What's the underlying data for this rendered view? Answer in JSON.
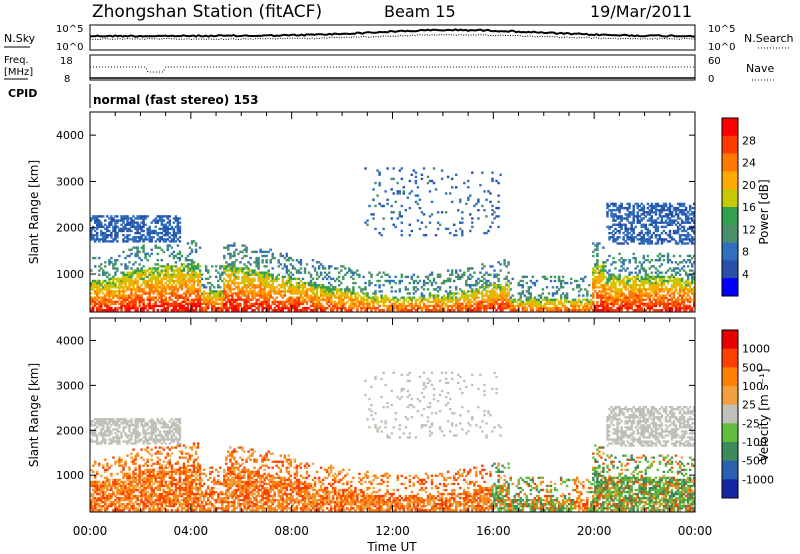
{
  "header": {
    "station": "Zhongshan Station (fitACF)",
    "beam": "Beam 15",
    "date": "19/Mar/2011"
  },
  "top_panels": {
    "nsky_label": "N.Sky",
    "nsearch_label": "N.Search",
    "nsky_ticks": [
      "10^5",
      "10^0"
    ],
    "nsearch_ticks": [
      "10^5",
      "10^0"
    ],
    "freq_label_1": "Freq.",
    "freq_label_2": "[MHz]",
    "freq_ticks": [
      "18",
      "8"
    ],
    "nave_label": "Nave",
    "nave_ticks": [
      "60",
      "0"
    ],
    "cpid_label": "CPID",
    "cpid_text": "normal (fast stereo) 153"
  },
  "chart_data": [
    {
      "type": "heatmap",
      "name": "power",
      "xlabel": "",
      "ylabel": "Slant Range [km]",
      "y_ticks": [
        1000,
        2000,
        3000,
        4000
      ],
      "ylim": [
        180,
        4500
      ],
      "colorbar": {
        "label": "Power [dB]",
        "ticks": [
          "28",
          "24",
          "20",
          "16",
          "12",
          "8",
          "4"
        ],
        "colors": [
          "#0000ff",
          "#2850a8",
          "#2f6fbd",
          "#4a8f6a",
          "#32a050",
          "#c8c800",
          "#ffaa00",
          "#ff7800",
          "#ff3c00",
          "#ff0000"
        ]
      },
      "x_ticks": [
        "00:00",
        "04:00",
        "08:00",
        "12:00",
        "16:00",
        "20:00",
        "00:00"
      ]
    },
    {
      "type": "heatmap",
      "name": "velocity",
      "xlabel": "Time UT",
      "ylabel": "Slant Range [km]",
      "y_ticks": [
        1000,
        2000,
        3000,
        4000
      ],
      "ylim": [
        180,
        4500
      ],
      "colorbar": {
        "label": "Velocity [m s⁻¹]",
        "ticks": [
          "1000",
          "500",
          "100",
          "25",
          "-25",
          "-100",
          "-500",
          "-1000"
        ],
        "colors": [
          "#1428a0",
          "#2c5fb0",
          "#3d8a5a",
          "#5fbf3a",
          "#c0c0b8",
          "#f0a040",
          "#ff8000",
          "#ff4000",
          "#e60000"
        ]
      },
      "x_ticks": [
        "00:00",
        "04:00",
        "08:00",
        "12:00",
        "16:00",
        "20:00",
        "00:00"
      ]
    }
  ]
}
